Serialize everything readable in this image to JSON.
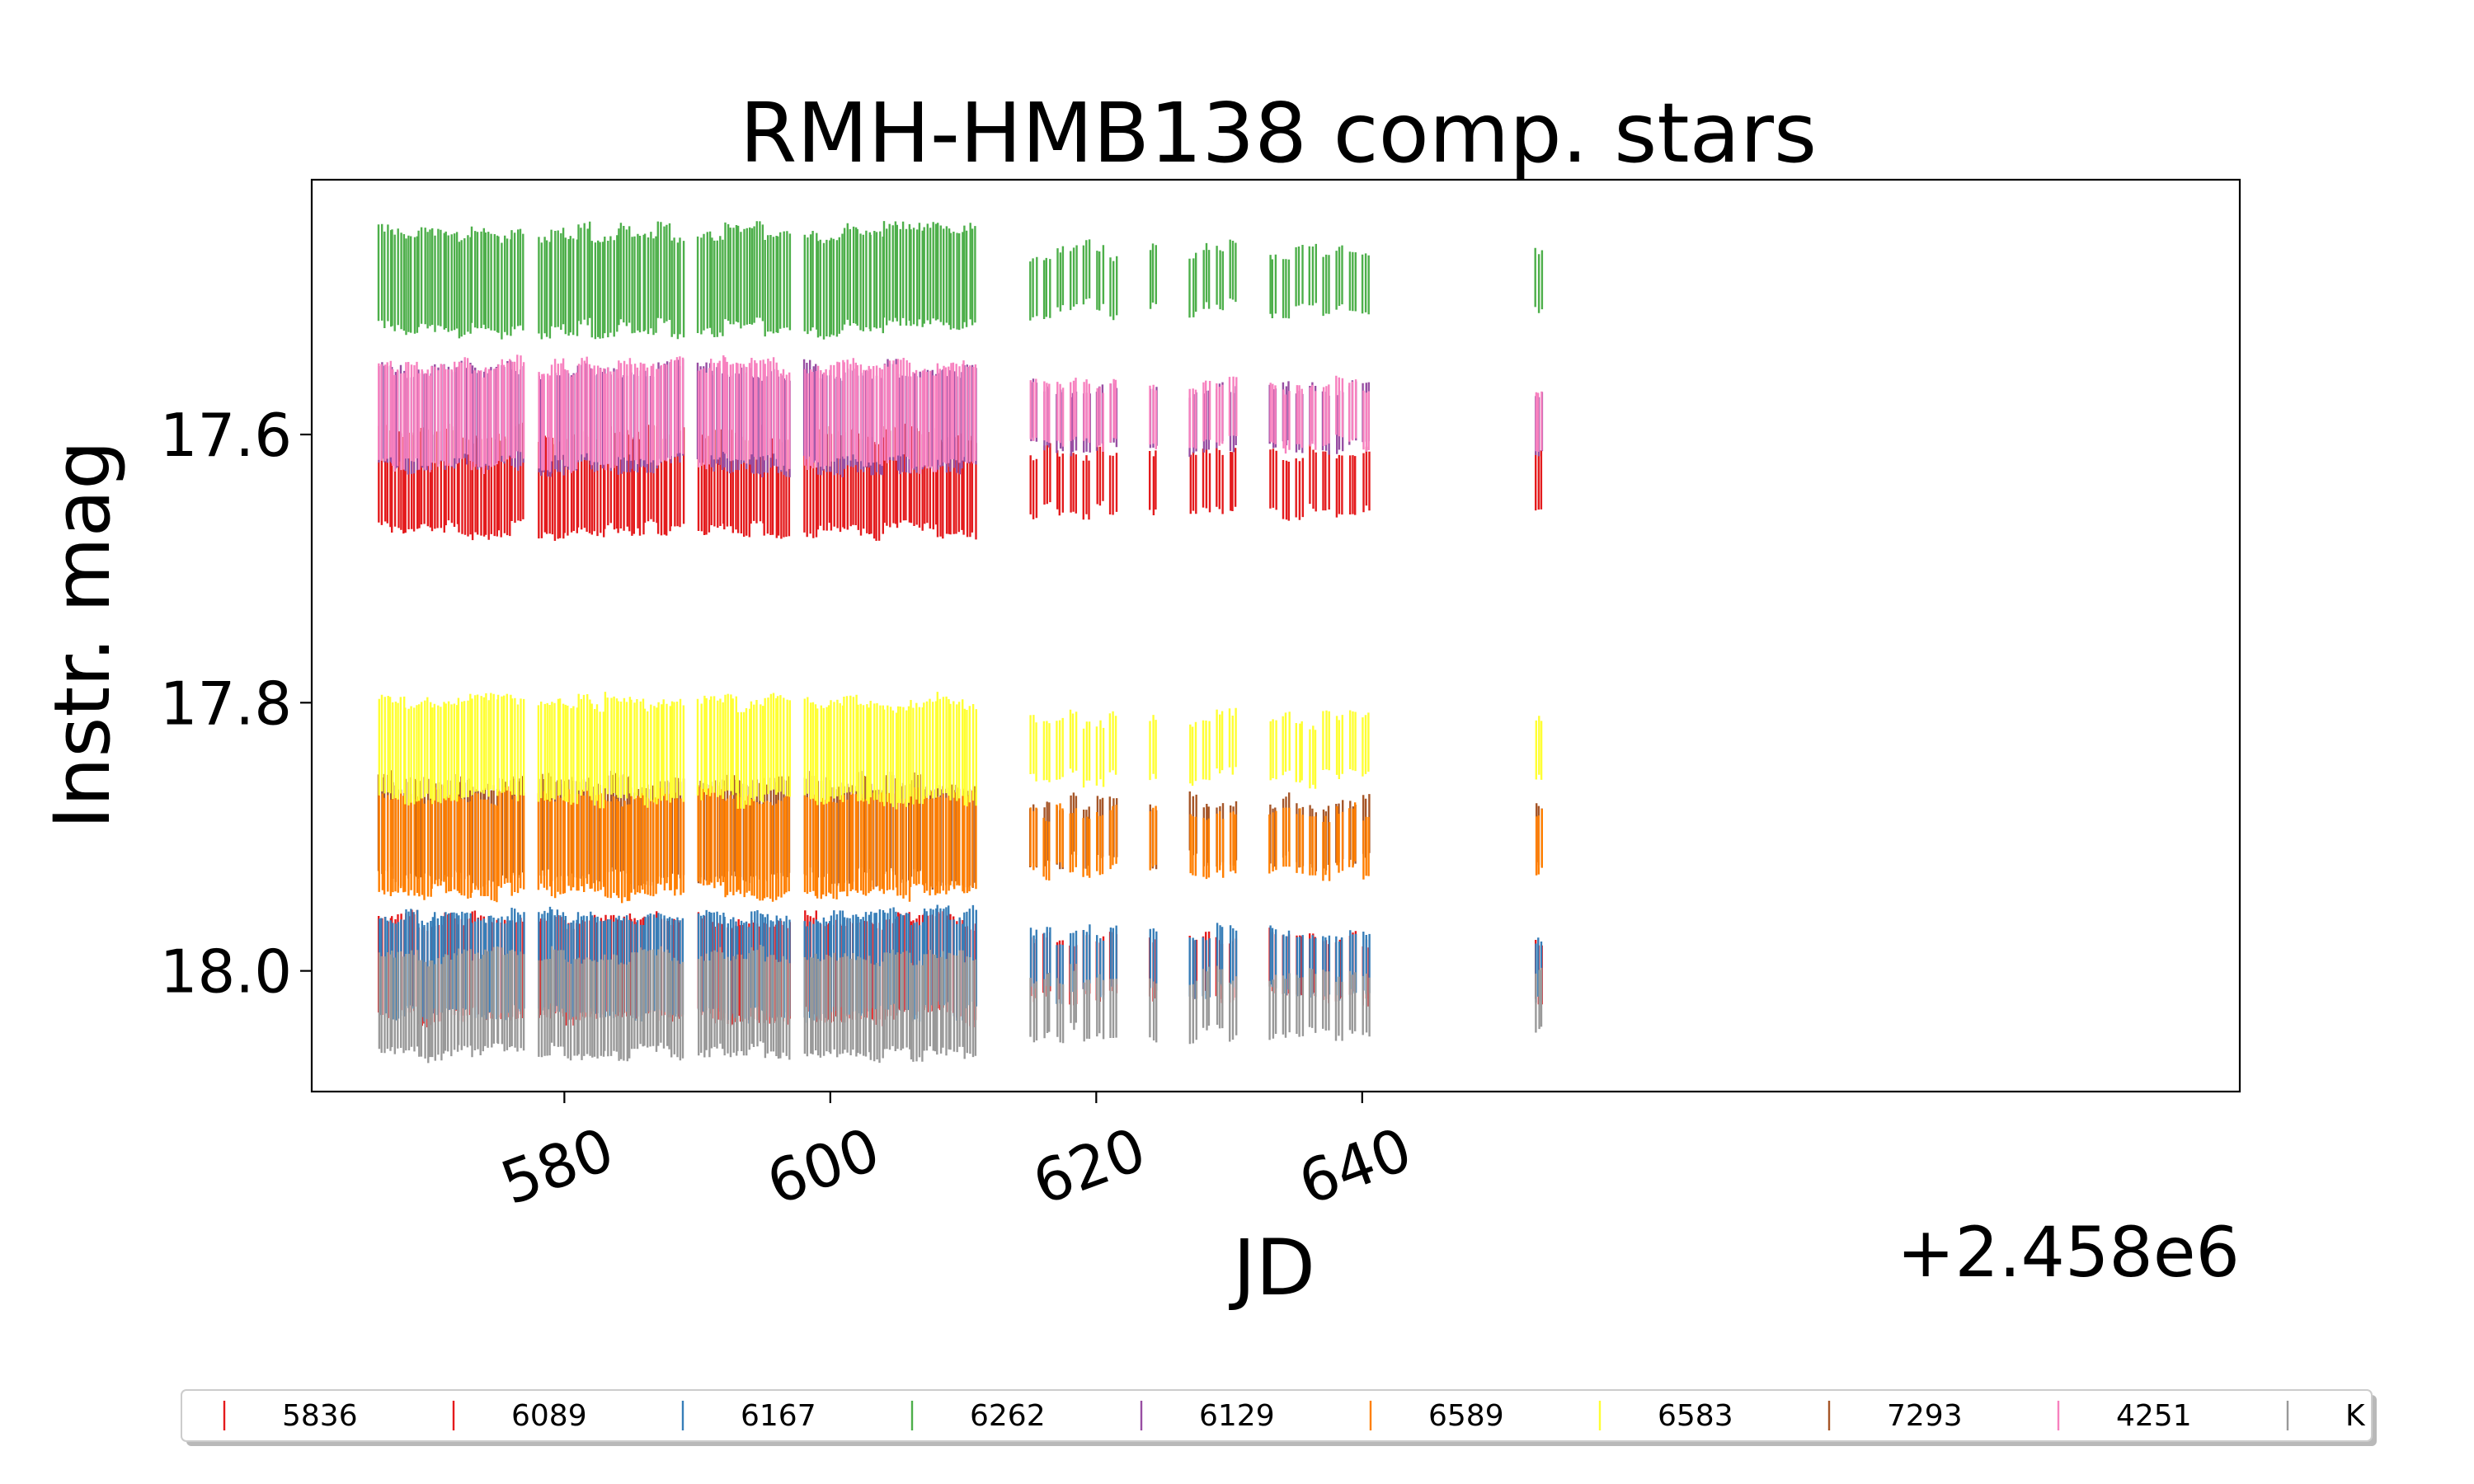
{
  "chart_data": {
    "type": "scatter",
    "title": "RMH-HMB138 comp. stars",
    "xlabel": "JD",
    "ylabel": "Instr. mag",
    "x_offset_label": "+2.458e6",
    "xlim": [
      561,
      706
    ],
    "ylim": [
      18.09,
      17.41
    ],
    "y_inverted": true,
    "x_ticks": [
      580,
      600,
      620,
      640
    ],
    "x_tick_labels": [
      "580",
      "600",
      "620",
      "640"
    ],
    "y_ticks": [
      17.6,
      17.8,
      18.0
    ],
    "y_tick_labels": [
      "17.6",
      "17.8",
      "18.0"
    ],
    "grid": false,
    "legend_position": "bottom",
    "marker": "vertical-line",
    "observation_nights": [
      566.5,
      567.5,
      568.5,
      569.5,
      570.5,
      571.5,
      572.5,
      573.5,
      574.5,
      575.5,
      576.5,
      578.5,
      579.5,
      580.5,
      581.5,
      582.5,
      583.5,
      584.5,
      585.5,
      586.5,
      587.5,
      588.5,
      590.5,
      591.5,
      592.5,
      593.5,
      594.5,
      595.5,
      596.5,
      598.5,
      599.5,
      600.5,
      601.5,
      602.5,
      603.5,
      604.5,
      605.5,
      606.5,
      607.5,
      608.5,
      609.5,
      610.5,
      615.5,
      616.5,
      617.5,
      618.5,
      619.5,
      620.5,
      621.5,
      624.5,
      627.5,
      628.5,
      629.5,
      630.5,
      633.5,
      634.5,
      635.5,
      636.5,
      637.5,
      638.5,
      639.5,
      640.5,
      653.5
    ],
    "series": [
      {
        "name": "5836",
        "color": "#e41a1c",
        "mean_mag": 17.635
      },
      {
        "name": "6089",
        "color": "#e41a1c",
        "mean_mag": 17.998
      },
      {
        "name": "6167",
        "color": "#377eb8",
        "mean_mag": 17.995
      },
      {
        "name": "6262",
        "color": "#4daf4a",
        "mean_mag": 17.485
      },
      {
        "name": "6129",
        "color": "#984ea3",
        "mean_mag": 17.588
      },
      {
        "name": "6589",
        "color": "#ff7f00",
        "mean_mag": 17.905
      },
      {
        "name": "6583",
        "color": "#ffff33",
        "mean_mag": 17.835
      },
      {
        "name": "7293",
        "color": "#a65628",
        "mean_mag": 17.895
      },
      {
        "name": "4251",
        "color": "#f781bf",
        "mean_mag": 17.585
      },
      {
        "name": "K",
        "color": "#999999",
        "mean_mag": 18.025
      }
    ]
  }
}
